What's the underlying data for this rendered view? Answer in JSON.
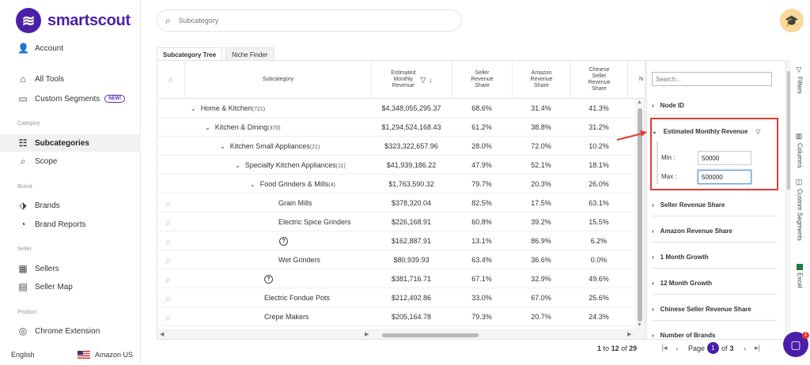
{
  "app": {
    "name": "smartscout"
  },
  "sidebar": {
    "account": "Account",
    "all_tools": "All Tools",
    "custom_segments": "Custom Segments",
    "new_badge": "NEW!",
    "section_category": "Category",
    "subcategories": "Subcategories",
    "scope": "Scope",
    "section_brand": "Brand",
    "brands": "Brands",
    "brand_reports": "Brand Reports",
    "section_seller": "Seller",
    "sellers": "Sellers",
    "seller_map": "Seller Map",
    "section_product": "Product",
    "chrome_extension": "Chrome Extension",
    "language": "English",
    "marketplace": "Amazon US"
  },
  "search": {
    "placeholder": "Subcategory"
  },
  "tabs": [
    "Subcategory Tree",
    "Niche Finder"
  ],
  "grid": {
    "headers": {
      "subcategory": "Subcategory",
      "est_rev": [
        "Estimated",
        "Monthly",
        "Revenue"
      ],
      "seller_share": [
        "Seller",
        "Revenue",
        "Share"
      ],
      "amazon_share": [
        "Amazon",
        "Revenue",
        "Share"
      ],
      "chinese_share": [
        "Chinese",
        "Seller",
        "Revenue",
        "Share"
      ],
      "next": "N"
    },
    "rows": [
      {
        "name": "Home & Kitchen",
        "count": "(721)",
        "rev": "$4,348,055,295.37",
        "seller": "68.6%",
        "amazon": "31.4%",
        "chinese": "41.3%"
      },
      {
        "name": "Kitchen & Dining",
        "count": "(370)",
        "rev": "$1,294,524,168.43",
        "seller": "61.2%",
        "amazon": "38.8%",
        "chinese": "31.2%"
      },
      {
        "name": "Kitchen Small Appliances",
        "count": "(21)",
        "rev": "$323,322,657.96",
        "seller": "28.0%",
        "amazon": "72.0%",
        "chinese": "10.2%"
      },
      {
        "name": "Specialty Kitchen Appliances",
        "count": "(11)",
        "rev": "$41,939,186.22",
        "seller": "47.9%",
        "amazon": "52.1%",
        "chinese": "18.1%"
      },
      {
        "name": "Food Grinders & Mills",
        "count": "(4)",
        "rev": "$1,763,590.32",
        "seller": "79.7%",
        "amazon": "20.3%",
        "chinese": "26.0%"
      },
      {
        "name": "Grain Mills",
        "count": "",
        "rev": "$378,320.04",
        "seller": "82.5%",
        "amazon": "17.5%",
        "chinese": "63.1%"
      },
      {
        "name": "Electric Spice Grinders",
        "count": "",
        "rev": "$226,168.91",
        "seller": "60.8%",
        "amazon": "39.2%",
        "chinese": "15.5%"
      },
      {
        "name": "",
        "count": "",
        "rev": "$162,887.91",
        "seller": "13.1%",
        "amazon": "86.9%",
        "chinese": "6.2%"
      },
      {
        "name": "Wet Grinders",
        "count": "",
        "rev": "$80,939.93",
        "seller": "63.4%",
        "amazon": "36.6%",
        "chinese": "0.0%"
      },
      {
        "name": "",
        "count": "",
        "rev": "$381,716.71",
        "seller": "67.1%",
        "amazon": "32.9%",
        "chinese": "49.6%"
      },
      {
        "name": "Electric Fondue Pots",
        "count": "",
        "rev": "$212,492.86",
        "seller": "33.0%",
        "amazon": "67.0%",
        "chinese": "25.6%"
      },
      {
        "name": "Crepe Makers",
        "count": "",
        "rev": "$205,164.78",
        "seller": "79.3%",
        "amazon": "20.7%",
        "chinese": "24.3%"
      }
    ]
  },
  "pagination": {
    "from": "1",
    "to_word": "to",
    "to": "12",
    "of_word": "of",
    "total": "29",
    "page_word": "Page",
    "page": "1",
    "of_pages_word": "of",
    "pages": "3"
  },
  "filters": {
    "search_placeholder": "Search...",
    "node_id": "Node ID",
    "est_monthly_revenue": "Estimated Monthly Revenue",
    "min_label": "Min :",
    "min_value": "50000",
    "max_label": "Max :",
    "max_value": "500000",
    "seller_revenue_share": "Seller Revenue Share",
    "amazon_revenue_share": "Amazon Revenue Share",
    "one_month_growth": "1 Month Growth",
    "twelve_month_growth": "12 Month Growth",
    "chinese_seller_revenue_share": "Chinese Seller Revenue Share",
    "number_of_brands": "Number of Brands"
  },
  "rail": {
    "filters": "Filters",
    "columns": "Columns",
    "custom_segments": "Custom Segments",
    "excel": "Excel"
  },
  "chat": {
    "badge": "1"
  }
}
